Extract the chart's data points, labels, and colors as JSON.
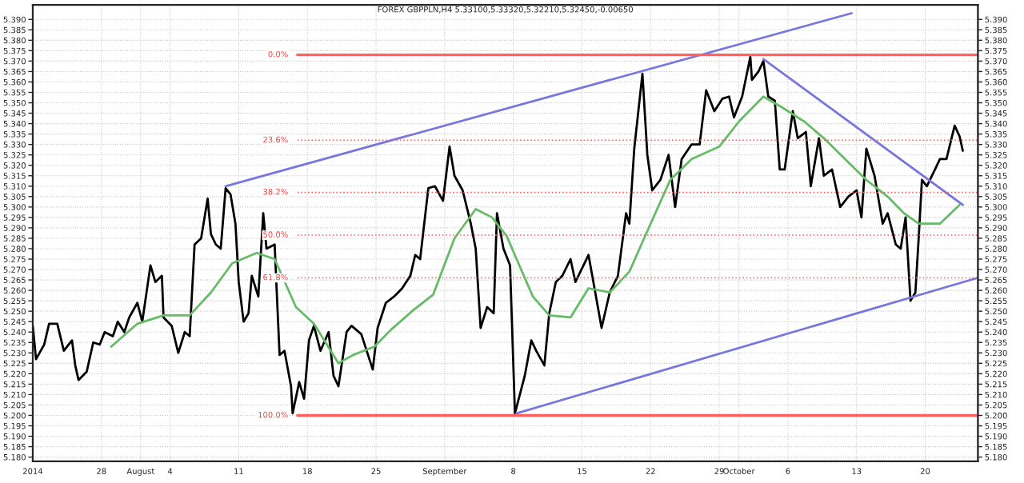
{
  "chart_data": {
    "type": "line",
    "title": "FOREX GBPPLN,H4 5.33100,5.33320,5.32210,5.32450,-0.00650",
    "series": [
      {
        "color": "#000000",
        "x": [
          "2014-07-21T00:00",
          "2014-07-21T08:00",
          "2014-07-22T04:00",
          "2014-07-22T16:00",
          "2014-07-23T12:00",
          "2014-07-24T04:00",
          "2014-07-25T00:00",
          "2014-07-25T08:00",
          "2014-07-25T16:00",
          "2014-07-26T12:00",
          "2014-07-27T04:00",
          "2014-07-27T20:00",
          "2014-07-28T08:00",
          "2014-07-29T04:00",
          "2014-07-29T16:00",
          "2014-07-30T08:00",
          "2014-07-30T20:00",
          "2014-07-31T16:00",
          "2014-08-01T04:00",
          "2014-08-02T00:00",
          "2014-08-02T12:00",
          "2014-08-03T04:00",
          "2014-08-03T08:00",
          "2014-08-04T04:00",
          "2014-08-04T20:00",
          "2014-08-05T12:00",
          "2014-08-06T00:00",
          "2014-08-06T12:00",
          "2014-08-07T04:00",
          "2014-08-07T20:00",
          "2014-08-08T04:00",
          "2014-08-08T16:00",
          "2014-08-09T04:00",
          "2014-08-09T16:00",
          "2014-08-10T04:00",
          "2014-08-10T16:00",
          "2014-08-11T00:00",
          "2014-08-11T12:00",
          "2014-08-12T00:00",
          "2014-08-12T08:00",
          "2014-08-13T00:00",
          "2014-08-13T12:00",
          "2014-08-13T20:00",
          "2014-08-14T16:00",
          "2014-08-14T20:00",
          "2014-08-15T04:00",
          "2014-08-15T16:00",
          "2014-08-16T08:00",
          "2014-08-16T12:00",
          "2014-08-17T04:00",
          "2014-08-17T16:00",
          "2014-08-18T04:00",
          "2014-08-18T16:00",
          "2014-08-19T08:00",
          "2014-08-20T04:00",
          "2014-08-20T16:00",
          "2014-08-21T04:00",
          "2014-08-22T00:00",
          "2014-08-22T12:00",
          "2014-08-23T12:00",
          "2014-08-24T16:00",
          "2014-08-25T04:00",
          "2014-08-26T00:00",
          "2014-08-26T20:00",
          "2014-08-27T16:00",
          "2014-08-28T12:00",
          "2014-08-29T00:00",
          "2014-08-29T12:00",
          "2014-08-30T08:00",
          "2014-08-31T00:00",
          "2014-08-31T20:00",
          "2014-09-01T12:00",
          "2014-09-02T00:00",
          "2014-09-02T20:00",
          "2014-09-03T16:00",
          "2014-09-04T04:00",
          "2014-09-04T16:00",
          "2014-09-05T08:00",
          "2014-09-06T00:00",
          "2014-09-06T08:00",
          "2014-09-07T00:00",
          "2014-09-07T16:00",
          "2014-09-08T04:00",
          "2014-09-09T04:00",
          "2014-09-09T20:00",
          "2014-09-10T08:00",
          "2014-09-11T04:00",
          "2014-09-11T16:00",
          "2014-09-12T08:00",
          "2014-09-13T00:00",
          "2014-09-13T20:00",
          "2014-09-14T08:00",
          "2014-09-15T16:00",
          "2014-09-16T04:00",
          "2014-09-17T00:00",
          "2014-09-17T20:00",
          "2014-09-18T16:00",
          "2014-09-19T12:00",
          "2014-09-19T20:00",
          "2014-09-20T08:00",
          "2014-09-21T04:00",
          "2014-09-21T16:00",
          "2014-09-22T04:00",
          "2014-09-23T00:00",
          "2014-09-23T20:00",
          "2014-09-24T12:00",
          "2014-09-25T04:00",
          "2014-09-26T04:00",
          "2014-09-27T00:00",
          "2014-09-27T16:00",
          "2014-09-28T12:00",
          "2014-09-29T08:00",
          "2014-09-30T00:00",
          "2014-09-30T12:00",
          "2014-10-01T08:00",
          "2014-10-02T04:00",
          "2014-10-02T08:00",
          "2014-10-03T00:00",
          "2014-10-03T12:00",
          "2014-10-04T00:00",
          "2014-10-04T16:00",
          "2014-10-05T04:00",
          "2014-10-05T16:00",
          "2014-10-06T12:00",
          "2014-10-07T00:00",
          "2014-10-07T20:00",
          "2014-10-08T08:00",
          "2014-10-09T04:00",
          "2014-10-09T16:00",
          "2014-10-10T12:00",
          "2014-10-11T08:00",
          "2014-10-12T04:00",
          "2014-10-13T00:00",
          "2014-10-13T12:00",
          "2014-10-14T00:00",
          "2014-10-14T20:00",
          "2014-10-15T16:00",
          "2014-10-16T04:00",
          "2014-10-17T00:00",
          "2014-10-17T12:00",
          "2014-10-18T00:00",
          "2014-10-18T12:00",
          "2014-10-19T00:00",
          "2014-10-19T08:00",
          "2014-10-19T16:00",
          "2014-10-20T04:00",
          "2014-10-21T00:00",
          "2014-10-21T12:00",
          "2014-10-22T04:00",
          "2014-10-23T00:00",
          "2014-10-23T12:00",
          "2014-10-23T20:00"
        ],
        "values": [
          5.243,
          5.227,
          5.234,
          5.244,
          5.244,
          5.231,
          5.236,
          5.224,
          5.217,
          5.221,
          5.235,
          5.234,
          5.24,
          5.238,
          5.245,
          5.24,
          5.247,
          5.254,
          5.245,
          5.272,
          5.264,
          5.267,
          5.247,
          5.243,
          5.23,
          5.24,
          5.238,
          5.282,
          5.285,
          5.304,
          5.287,
          5.282,
          5.28,
          5.309,
          5.306,
          5.292,
          5.264,
          5.245,
          5.249,
          5.267,
          5.257,
          5.297,
          5.28,
          5.282,
          5.264,
          5.229,
          5.231,
          5.214,
          5.201,
          5.216,
          5.208,
          5.236,
          5.243,
          5.231,
          5.24,
          5.219,
          5.214,
          5.24,
          5.243,
          5.239,
          5.222,
          5.242,
          5.254,
          5.257,
          5.261,
          5.267,
          5.277,
          5.275,
          5.309,
          5.31,
          5.303,
          5.329,
          5.315,
          5.308,
          5.292,
          5.28,
          5.242,
          5.252,
          5.249,
          5.297,
          5.28,
          5.272,
          5.201,
          5.219,
          5.236,
          5.231,
          5.224,
          5.249,
          5.264,
          5.267,
          5.275,
          5.264,
          5.277,
          5.264,
          5.242,
          5.259,
          5.267,
          5.297,
          5.292,
          5.328,
          5.364,
          5.325,
          5.308,
          5.313,
          5.325,
          5.3,
          5.323,
          5.33,
          5.33,
          5.356,
          5.346,
          5.352,
          5.353,
          5.343,
          5.353,
          5.372,
          5.361,
          5.365,
          5.37,
          5.353,
          5.351,
          5.318,
          5.318,
          5.346,
          5.333,
          5.336,
          5.31,
          5.333,
          5.315,
          5.318,
          5.3,
          5.305,
          5.308,
          5.295,
          5.328,
          5.315,
          5.292,
          5.297,
          5.282,
          5.28,
          5.295,
          5.255,
          5.259,
          5.285,
          5.313,
          5.31,
          5.318,
          5.323,
          5.323,
          5.339,
          5.334,
          5.327
        ]
      },
      {
        "color": "#66bb66",
        "x": [
          "2014-07-29T00:00",
          "2014-07-31T16:00",
          "2014-08-03T08:00",
          "2014-08-06T00:00",
          "2014-08-08T04:00",
          "2014-08-10T08:00",
          "2014-08-12T20:00",
          "2014-08-14T16:00",
          "2014-08-16T20:00",
          "2014-08-18T16:00",
          "2014-08-21T04:00",
          "2014-08-22T16:00",
          "2014-08-24T20:00",
          "2014-08-26T12:00",
          "2014-08-28T16:00",
          "2014-08-30T20:00",
          "2014-09-02T00:00",
          "2014-09-04T04:00",
          "2014-09-05T20:00",
          "2014-09-07T08:00",
          "2014-09-08T08:00",
          "2014-09-10T00:00",
          "2014-09-11T16:00",
          "2014-09-13T20:00",
          "2014-09-15T16:00",
          "2014-09-17T20:00",
          "2014-09-19T20:00",
          "2014-09-22T00:00",
          "2014-09-24T00:00",
          "2014-09-26T04:00",
          "2014-09-29T00:00",
          "2014-10-01T00:00",
          "2014-10-03T12:00",
          "2014-10-05T08:00",
          "2014-10-07T16:00",
          "2014-10-09T16:00",
          "2014-10-11T20:00",
          "2014-10-14T00:00",
          "2014-10-16T04:00",
          "2014-10-17T20:00",
          "2014-10-19T08:00",
          "2014-10-21T12:00",
          "2014-10-23T12:00"
        ],
        "values": [
          5.233,
          5.244,
          5.248,
          5.248,
          5.259,
          5.273,
          5.278,
          5.275,
          5.252,
          5.244,
          5.225,
          5.229,
          5.233,
          5.241,
          5.25,
          5.258,
          5.285,
          5.299,
          5.295,
          5.286,
          5.275,
          5.257,
          5.248,
          5.247,
          5.261,
          5.259,
          5.269,
          5.292,
          5.313,
          5.323,
          5.329,
          5.341,
          5.353,
          5.348,
          5.341,
          5.333,
          5.323,
          5.313,
          5.305,
          5.297,
          5.292,
          5.292,
          5.301
        ]
      },
      {
        "color": "#7777dd",
        "x": [
          "2014-08-09T16:00",
          "2014-10-12T12:00"
        ],
        "values": [
          5.31,
          5.393
        ]
      },
      {
        "color": "#7777dd",
        "x": [
          "2014-09-08T08:00",
          "2014-10-25T08:00"
        ],
        "values": [
          5.201,
          5.266
        ]
      },
      {
        "color": "#7777dd",
        "x": [
          "2014-10-03T12:00",
          "2014-10-23T20:00"
        ],
        "values": [
          5.371,
          5.301
        ]
      }
    ],
    "ref_lines": [
      {
        "axis": "y",
        "value": 5.373,
        "color": "#ff6060",
        "line_style": "solid"
      },
      {
        "axis": "y",
        "value": 5.332,
        "color": "#ff6060",
        "line_style": "dotted"
      },
      {
        "axis": "y",
        "value": 5.307,
        "color": "#ff6060",
        "line_style": "dotted"
      },
      {
        "axis": "y",
        "value": 5.2865,
        "color": "#ff6060",
        "line_style": "dotted"
      },
      {
        "axis": "y",
        "value": 5.266,
        "color": "#ff6060",
        "line_style": "dotted"
      },
      {
        "axis": "y",
        "value": 5.2,
        "color": "#ff6060",
        "line_style": "solid"
      }
    ],
    "annotations": [
      {
        "text": "0.0%",
        "x": "2014-08-16T12:00",
        "y": 5.373
      },
      {
        "text": "23.6%",
        "x": "2014-08-16T12:00",
        "y": 5.332
      },
      {
        "text": "38.2%",
        "x": "2014-08-16T12:00",
        "y": 5.307
      },
      {
        "text": "50.0%",
        "x": "2014-08-16T12:00",
        "y": 5.2865
      },
      {
        "text": "61.8%",
        "x": "2014-08-16T12:00",
        "y": 5.266
      },
      {
        "text": "100.0%",
        "x": "2014-08-16T12:00",
        "y": 5.2
      }
    ],
    "xlim": [
      "2014-07-21T00:00",
      "2014-10-25T09:00"
    ],
    "xticks": [
      {
        "value": "2014-07-21",
        "label": "2014"
      },
      {
        "value": "2014-07-28",
        "label": "28"
      },
      {
        "value": "2014-08-01",
        "label": "August"
      },
      {
        "value": "2014-08-04",
        "label": "4"
      },
      {
        "value": "2014-08-11",
        "label": "11"
      },
      {
        "value": "2014-08-18",
        "label": "18"
      },
      {
        "value": "2014-08-25",
        "label": "25"
      },
      {
        "value": "2014-09-01",
        "label": "September"
      },
      {
        "value": "2014-09-08",
        "label": "8"
      },
      {
        "value": "2014-09-15",
        "label": "15"
      },
      {
        "value": "2014-09-22",
        "label": "22"
      },
      {
        "value": "2014-09-29",
        "label": "29"
      },
      {
        "value": "2014-10-01",
        "label": "October"
      },
      {
        "value": "2014-10-06",
        "label": "6"
      },
      {
        "value": "2014-10-13",
        "label": "13"
      },
      {
        "value": "2014-10-20",
        "label": "20"
      }
    ],
    "ylim": [
      5.178,
      5.397
    ],
    "yticks": [
      {
        "value": 5.18,
        "label": "5.180"
      },
      5.185,
      {
        "value": 5.19,
        "label": "5.190"
      },
      5.195,
      {
        "value": 5.2,
        "label": "5.200"
      },
      5.205,
      {
        "value": 5.21,
        "label": "5.210"
      },
      5.215,
      {
        "value": 5.22,
        "label": "5.220"
      },
      5.225,
      {
        "value": 5.23,
        "label": "5.230"
      },
      5.235,
      {
        "value": 5.24,
        "label": "5.240"
      },
      5.245,
      {
        "value": 5.25,
        "label": "5.250"
      },
      5.255,
      {
        "value": 5.26,
        "label": "5.260"
      },
      5.265,
      {
        "value": 5.27,
        "label": "5.270"
      },
      5.275,
      {
        "value": 5.28,
        "label": "5.280"
      },
      5.285,
      {
        "value": 5.29,
        "label": "5.290"
      },
      5.295,
      {
        "value": 5.3,
        "label": "5.300"
      },
      5.305,
      {
        "value": 5.31,
        "label": "5.310"
      },
      5.315,
      {
        "value": 5.32,
        "label": "5.320"
      },
      5.325,
      {
        "value": 5.33,
        "label": "5.330"
      },
      5.335,
      {
        "value": 5.34,
        "label": "5.340"
      },
      5.345,
      {
        "value": 5.35,
        "label": "5.350"
      },
      5.355,
      {
        "value": 5.36,
        "label": "5.360"
      },
      5.365,
      {
        "value": 5.37,
        "label": "5.370"
      },
      5.375,
      {
        "value": 5.38,
        "label": "5.380"
      },
      5.385,
      {
        "value": 5.39,
        "label": "5.390"
      }
    ],
    "y2lim": [
      5.178,
      5.397
    ],
    "y2ticks": [
      {
        "value": 5.18,
        "label": "5.180"
      },
      5.185,
      {
        "value": 5.19,
        "label": "5.190"
      },
      5.195,
      {
        "value": 5.2,
        "label": "5.200"
      },
      5.205,
      {
        "value": 5.21,
        "label": "5.210"
      },
      5.215,
      {
        "value": 5.22,
        "label": "5.220"
      },
      5.225,
      {
        "value": 5.23,
        "label": "5.230"
      },
      5.235,
      {
        "value": 5.24,
        "label": "5.240"
      },
      5.245,
      {
        "value": 5.25,
        "label": "5.250"
      },
      5.255,
      {
        "value": 5.26,
        "label": "5.260"
      },
      5.265,
      {
        "value": 5.27,
        "label": "5.270"
      },
      5.275,
      {
        "value": 5.28,
        "label": "5.280"
      },
      5.285,
      {
        "value": 5.29,
        "label": "5.290"
      },
      5.295,
      {
        "value": 5.3,
        "label": "5.300"
      },
      5.305,
      {
        "value": 5.31,
        "label": "5.310"
      },
      5.315,
      {
        "value": 5.32,
        "label": "5.320"
      },
      5.325,
      {
        "value": 5.33,
        "label": "5.330"
      },
      5.335,
      {
        "value": 5.34,
        "label": "5.340"
      },
      5.345,
      {
        "value": 5.35,
        "label": "5.350"
      },
      5.355,
      {
        "value": 5.36,
        "label": "5.360"
      },
      5.365,
      {
        "value": 5.37,
        "label": "5.370"
      },
      5.375,
      {
        "value": 5.38,
        "label": "5.380"
      },
      5.385,
      {
        "value": 5.39,
        "label": "5.390"
      }
    ],
    "grid": true,
    "legend": false
  }
}
